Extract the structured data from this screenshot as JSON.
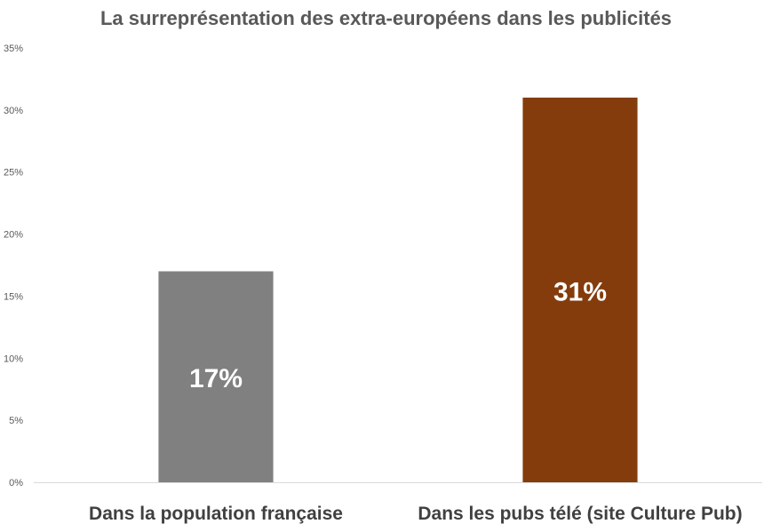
{
  "chart_data": {
    "type": "bar",
    "title": "La surreprésentation des extra-européens dans les publicités",
    "categories": [
      "Dans la population française",
      "Dans les pubs télé (site Culture Pub)"
    ],
    "values": [
      17,
      31
    ],
    "data_labels": [
      "17%",
      "31%"
    ],
    "bar_colors": [
      "#808080",
      "#843C0C"
    ],
    "yticks": [
      "0%",
      "5%",
      "10%",
      "15%",
      "20%",
      "25%",
      "30%",
      "35%"
    ],
    "ylim": [
      0,
      35
    ],
    "grid": false,
    "legend": "none",
    "xlabel": "",
    "ylabel": ""
  }
}
